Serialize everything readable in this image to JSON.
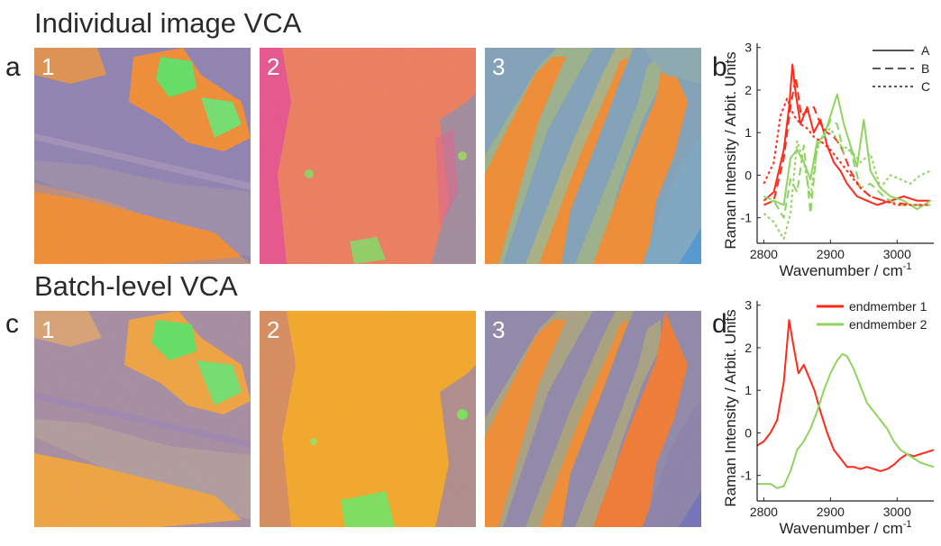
{
  "headings": {
    "top": "Individual image VCA",
    "bottom": "Batch-level VCA"
  },
  "panel_letters": {
    "a": "a",
    "b": "b",
    "c": "c",
    "d": "d"
  },
  "image_numbers": [
    "1",
    "2",
    "3"
  ],
  "colors": {
    "purple": "#8d7fb0",
    "orange": "#f28a2e",
    "green": "#5fe05f",
    "pink": "#e8508a",
    "yellow_orange": "#f5a623",
    "steel_blue": "#7fa0b8",
    "red": "#ff2a1a",
    "light_green": "#8fd45f"
  },
  "chart_data": [
    {
      "type": "line",
      "panel": "b",
      "xlabel": "Wavenumber / cm",
      "xlabel_sup": "-1",
      "ylabel": "Raman Intensity / Arbit. Units",
      "xlim": [
        2790,
        3055
      ],
      "ylim": [
        -1.6,
        3.1
      ],
      "xticks": [
        2800,
        2900,
        3000
      ],
      "yticks": [
        3,
        2,
        1,
        0,
        -1
      ],
      "legend": [
        "A",
        "B",
        "C"
      ],
      "legend_position": "top-right",
      "series": [
        {
          "name": "A",
          "color": "#ff2a1a",
          "dash": "solid",
          "x": [
            2800,
            2815,
            2830,
            2838,
            2843,
            2848,
            2855,
            2865,
            2875,
            2885,
            2895,
            2905,
            2915,
            2925,
            2940,
            2955,
            2970,
            2990,
            3010,
            3030,
            3050
          ],
          "y": [
            -0.6,
            -0.4,
            0.6,
            1.6,
            2.6,
            1.9,
            1.2,
            1.6,
            1.0,
            1.3,
            0.7,
            0.3,
            0.1,
            -0.2,
            -0.5,
            -0.6,
            -0.7,
            -0.6,
            -0.5,
            -0.6,
            -0.6
          ]
        },
        {
          "name": "A",
          "color": "#8fd45f",
          "dash": "solid",
          "x": [
            2800,
            2815,
            2830,
            2840,
            2850,
            2860,
            2870,
            2880,
            2890,
            2900,
            2910,
            2920,
            2930,
            2940,
            2950,
            2960,
            2975,
            2990,
            3010,
            3030,
            3050
          ],
          "y": [
            -0.7,
            -0.6,
            -0.7,
            0.4,
            0.6,
            0.3,
            -0.1,
            0.8,
            0.9,
            1.4,
            1.9,
            1.2,
            0.7,
            0.2,
            1.3,
            0.1,
            -0.3,
            -0.5,
            -0.6,
            -0.8,
            -0.6
          ]
        },
        {
          "name": "B",
          "color": "#ff2a1a",
          "dash": "dash",
          "x": [
            2800,
            2815,
            2830,
            2840,
            2848,
            2856,
            2865,
            2875,
            2885,
            2895,
            2905,
            2915,
            2930,
            2945,
            2960,
            2980,
            3000,
            3020,
            3050
          ],
          "y": [
            -0.7,
            -0.6,
            0.4,
            1.6,
            2.3,
            1.4,
            1.5,
            1.6,
            1.2,
            1.0,
            0.9,
            0.7,
            0.1,
            -0.3,
            -0.5,
            -0.6,
            -0.65,
            -0.7,
            -0.7
          ]
        },
        {
          "name": "B",
          "color": "#8fd45f",
          "dash": "dash",
          "x": [
            2800,
            2815,
            2830,
            2840,
            2850,
            2860,
            2870,
            2880,
            2890,
            2900,
            2910,
            2920,
            2930,
            2945,
            2960,
            2980,
            3000,
            3020,
            3050
          ],
          "y": [
            -0.5,
            -0.6,
            -1.0,
            -0.1,
            -0.4,
            0.7,
            -0.9,
            0.7,
            0.9,
            1.3,
            1.2,
            0.5,
            0.6,
            -0.3,
            -0.2,
            -0.5,
            -0.7,
            -0.7,
            -0.7
          ]
        },
        {
          "name": "C",
          "color": "#ff2a1a",
          "dash": "dot",
          "x": [
            2800,
            2815,
            2825,
            2835,
            2845,
            2855,
            2865,
            2875,
            2885,
            2900,
            2915,
            2930,
            2945,
            2960,
            2980,
            3000,
            3025,
            3050
          ],
          "y": [
            -0.2,
            0.3,
            1.4,
            1.8,
            1.4,
            1.2,
            1.1,
            0.9,
            0.8,
            0.6,
            0.3,
            0.0,
            -0.3,
            -0.5,
            -0.6,
            -0.7,
            -0.7,
            -0.7
          ]
        },
        {
          "name": "C",
          "color": "#8fd45f",
          "dash": "dot",
          "x": [
            2800,
            2815,
            2830,
            2840,
            2850,
            2860,
            2870,
            2880,
            2890,
            2900,
            2915,
            2930,
            2945,
            2960,
            2975,
            2990,
            3005,
            3020,
            3035,
            3050
          ],
          "y": [
            -0.9,
            -1.1,
            -1.5,
            -0.9,
            0.8,
            0.3,
            -0.5,
            0.6,
            1.0,
            1.1,
            0.7,
            0.6,
            0.3,
            0.5,
            -0.3,
            0.0,
            -0.1,
            -0.2,
            0.0,
            0.1
          ]
        }
      ]
    },
    {
      "type": "line",
      "panel": "d",
      "xlabel": "Wavenumber / cm",
      "xlabel_sup": "-1",
      "ylabel": "Raman Intensity / Arbit. Units",
      "xlim": [
        2790,
        3055
      ],
      "ylim": [
        -1.6,
        3.1
      ],
      "xticks": [
        2800,
        2900,
        3000
      ],
      "yticks": [
        3,
        2,
        1,
        0,
        -1
      ],
      "legend_position": "top-right",
      "series": [
        {
          "name": "endmember 1",
          "color": "#ff2a1a",
          "dash": "solid",
          "x": [
            2790,
            2800,
            2810,
            2820,
            2830,
            2838,
            2845,
            2852,
            2860,
            2868,
            2876,
            2885,
            2895,
            2905,
            2915,
            2925,
            2935,
            2945,
            2955,
            2965,
            2975,
            2985,
            2995,
            3005,
            3015,
            3025,
            3035,
            3045,
            3055
          ],
          "y": [
            -0.3,
            -0.2,
            0.0,
            0.3,
            1.2,
            2.65,
            2.0,
            1.4,
            1.6,
            1.3,
            1.0,
            0.5,
            0.0,
            -0.4,
            -0.6,
            -0.8,
            -0.8,
            -0.85,
            -0.8,
            -0.85,
            -0.9,
            -0.85,
            -0.75,
            -0.6,
            -0.5,
            -0.55,
            -0.5,
            -0.45,
            -0.4
          ]
        },
        {
          "name": "endmember 2",
          "color": "#8fd45f",
          "dash": "solid",
          "x": [
            2790,
            2800,
            2810,
            2820,
            2830,
            2840,
            2850,
            2860,
            2870,
            2880,
            2890,
            2900,
            2910,
            2918,
            2925,
            2935,
            2945,
            2955,
            2965,
            2975,
            2985,
            2995,
            3005,
            3015,
            3025,
            3035,
            3045,
            3055
          ],
          "y": [
            -1.2,
            -1.2,
            -1.2,
            -1.3,
            -1.25,
            -0.9,
            -0.4,
            -0.2,
            0.1,
            0.5,
            1.0,
            1.4,
            1.7,
            1.85,
            1.8,
            1.5,
            1.1,
            0.7,
            0.5,
            0.3,
            0.1,
            -0.2,
            -0.4,
            -0.5,
            -0.6,
            -0.7,
            -0.75,
            -0.8
          ]
        }
      ]
    }
  ]
}
